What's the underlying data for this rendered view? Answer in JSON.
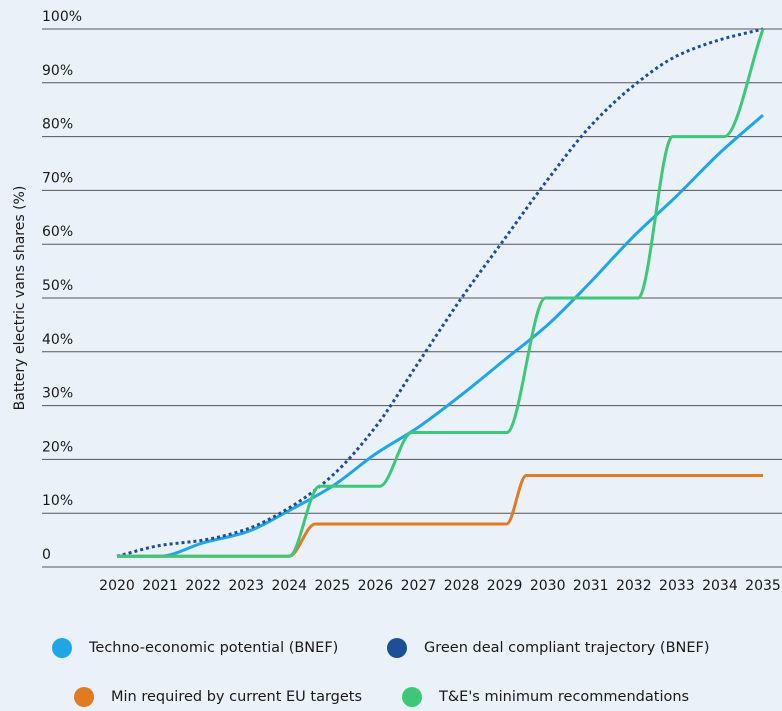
{
  "chart_data": {
    "type": "line",
    "ylabel": "Battery electric vans shares (%)",
    "xlim": [
      2020,
      2035
    ],
    "xticks": [
      2020,
      2021,
      2022,
      2023,
      2024,
      2025,
      2026,
      2027,
      2028,
      2029,
      2030,
      2031,
      2032,
      2033,
      2034,
      2035
    ],
    "ylim": [
      0,
      100
    ],
    "yticks": [
      0,
      {
        "value": 10,
        "label": "10%"
      },
      {
        "value": 20,
        "label": "20%"
      },
      {
        "value": 30,
        "label": "30%"
      },
      {
        "value": 40,
        "label": "40%"
      },
      {
        "value": 50,
        "label": "50%"
      },
      {
        "value": 60,
        "label": "60%"
      },
      {
        "value": 70,
        "label": "70%"
      },
      {
        "value": 80,
        "label": "80%"
      },
      {
        "value": 90,
        "label": "90%"
      },
      {
        "value": 100,
        "label": "100%"
      }
    ],
    "grid": true,
    "series": [
      {
        "name": "Techno-economic potential (BNEF)",
        "color": "#1fa6e6",
        "dashed": false,
        "x": [
          2020,
          2021,
          2022,
          2023,
          2024,
          2025,
          2026,
          2027,
          2028,
          2029,
          2030,
          2031,
          2032,
          2033,
          2034,
          2035
        ],
        "values": [
          2,
          2,
          4.5,
          6.5,
          10.5,
          15,
          21,
          26,
          32,
          38.5,
          45,
          53,
          61.5,
          69,
          77,
          84
        ]
      },
      {
        "name": "Green deal compliant trajectory (BNEF)",
        "color": "#1d4f98",
        "dashed": true,
        "x": [
          2020,
          2021,
          2022,
          2023,
          2024,
          2025,
          2026,
          2027,
          2028,
          2029,
          2030,
          2031,
          2032,
          2033,
          2034,
          2035
        ],
        "values": [
          2,
          4,
          5,
          7,
          11,
          17,
          26,
          38,
          50,
          61,
          72,
          82,
          89.5,
          95,
          98,
          100
        ]
      },
      {
        "name": "Min required by current EU targets",
        "color": "#e07b22",
        "dashed": false,
        "x": [
          2020,
          2024,
          2024.6,
          2029.05,
          2029.5,
          2035
        ],
        "values": [
          2,
          2,
          8,
          8,
          17,
          17
        ]
      },
      {
        "name": "T&E's minimum recommendations",
        "color": "#3cc878",
        "dashed": false,
        "x": [
          2020,
          2024,
          2024.7,
          2026.1,
          2026.85,
          2029.05,
          2029.95,
          2032.1,
          2032.9,
          2034.1,
          2035
        ],
        "values": [
          2,
          2,
          15,
          15,
          25,
          25,
          50,
          50,
          80,
          80,
          100
        ]
      }
    ]
  }
}
